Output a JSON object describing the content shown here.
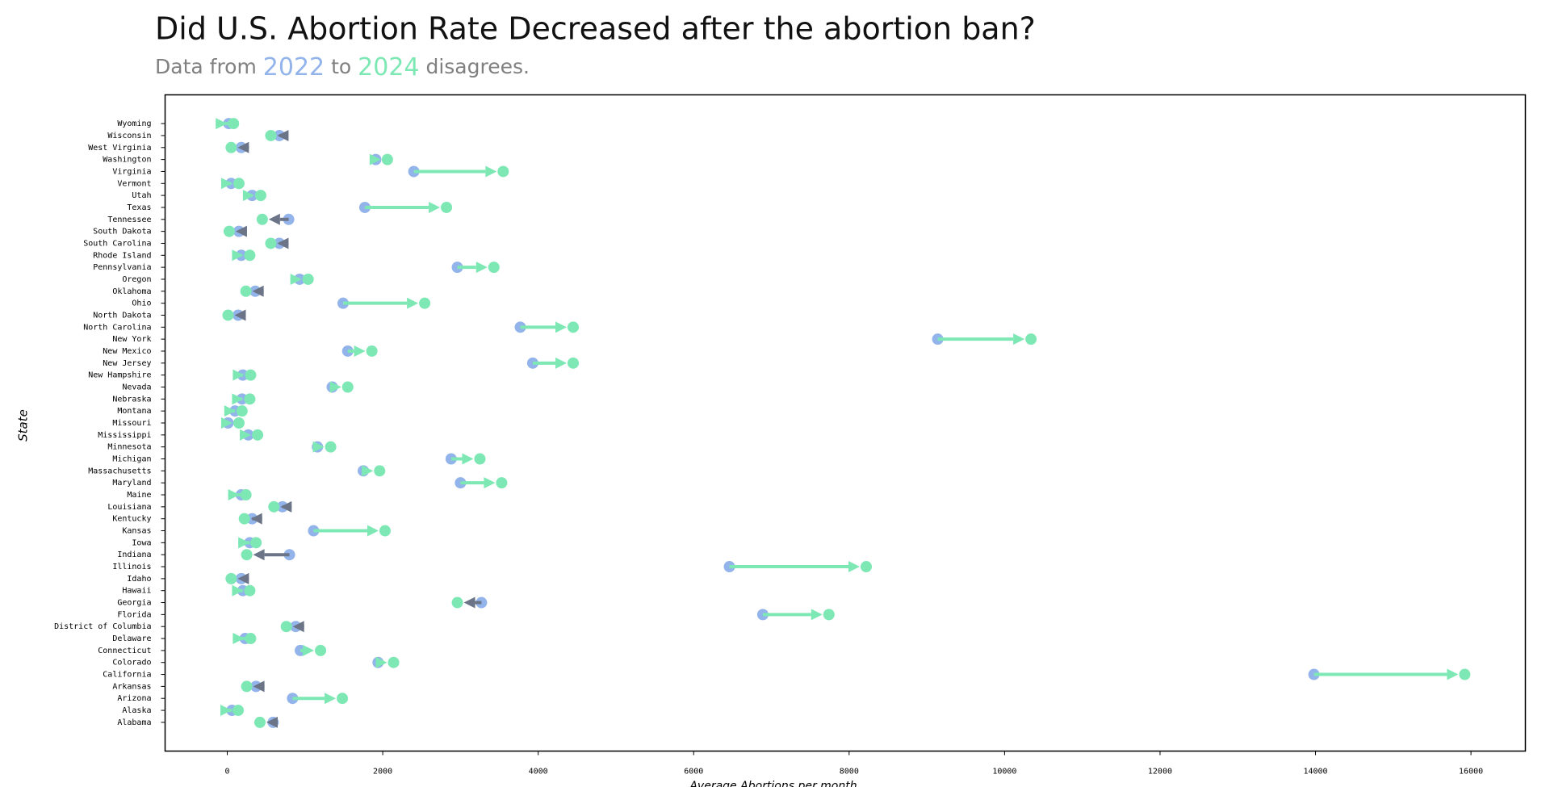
{
  "chart_data": {
    "type": "dumbbell",
    "title": "Did U.S. Abortion Rate Decreased after the abortion ban?",
    "subtitle_parts": [
      "Data from",
      "to",
      "disagrees."
    ],
    "xlabel": "Average Abortions per month",
    "ylabel": "State",
    "xlim": [
      -800,
      16700
    ],
    "xticks": [
      0,
      2000,
      4000,
      6000,
      8000,
      10000,
      12000,
      14000,
      16000
    ],
    "arrow_colors": {
      "increase": "#7ee8b5",
      "decrease": "#6c7588"
    },
    "categories": [
      "Alabama",
      "Alaska",
      "Arizona",
      "Arkansas",
      "California",
      "Colorado",
      "Connecticut",
      "Delaware",
      "District of Columbia",
      "Florida",
      "Georgia",
      "Hawaii",
      "Idaho",
      "Illinois",
      "Indiana",
      "Iowa",
      "Kansas",
      "Kentucky",
      "Louisiana",
      "Maine",
      "Maryland",
      "Massachusetts",
      "Michigan",
      "Minnesota",
      "Mississippi",
      "Missouri",
      "Montana",
      "Nebraska",
      "Nevada",
      "New Hampshire",
      "New Jersey",
      "New Mexico",
      "New York",
      "North Carolina",
      "North Dakota",
      "Ohio",
      "Oklahoma",
      "Oregon",
      "Pennsylvania",
      "Rhode Island",
      "South Carolina",
      "South Dakota",
      "Tennessee",
      "Texas",
      "Utah",
      "Vermont",
      "Virginia",
      "Washington",
      "West Virginia",
      "Wisconsin",
      "Wyoming"
    ],
    "series": [
      {
        "name": "2022",
        "color": "#92b4ea",
        "values": [
          590,
          60,
          840,
          370,
          13980,
          1940,
          940,
          230,
          880,
          6890,
          3270,
          200,
          180,
          6460,
          800,
          290,
          1110,
          320,
          710,
          180,
          3000,
          1750,
          2880,
          1160,
          270,
          10,
          100,
          190,
          1350,
          200,
          3930,
          1550,
          9140,
          3770,
          140,
          1490,
          360,
          930,
          2960,
          180,
          670,
          150,
          790,
          1770,
          320,
          50,
          2400,
          1910,
          180,
          670,
          20
        ]
      },
      {
        "name": "2024",
        "color": "#7ee8b5",
        "values": [
          420,
          140,
          1480,
          250,
          15920,
          2140,
          1200,
          300,
          760,
          7740,
          2960,
          290,
          50,
          8220,
          250,
          370,
          2030,
          220,
          600,
          240,
          3530,
          1960,
          3250,
          1330,
          390,
          150,
          190,
          290,
          1550,
          300,
          4450,
          1860,
          10340,
          4450,
          10,
          2540,
          240,
          1040,
          3430,
          290,
          560,
          25,
          450,
          2820,
          430,
          150,
          3550,
          2060,
          50,
          560,
          80
        ]
      }
    ]
  }
}
